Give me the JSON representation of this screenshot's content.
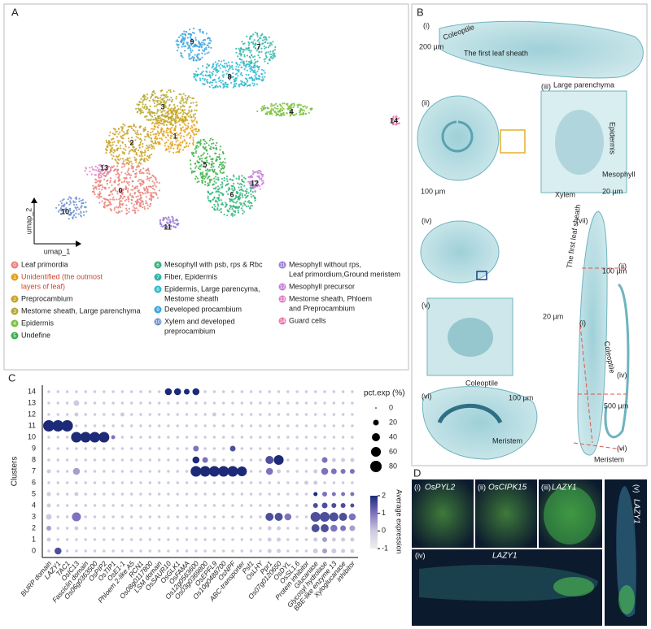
{
  "panel_a": {
    "letter": "A",
    "axis_x": "umap_1",
    "axis_y": "umap_2",
    "cluster_labels": [
      "0",
      "1",
      "2",
      "3",
      "4",
      "5",
      "6",
      "7",
      "8",
      "9",
      "10",
      "11",
      "12",
      "13",
      "14"
    ],
    "legend": [
      {
        "number": "0",
        "color": "#e8837a",
        "label": [
          "Leaf primordia"
        ]
      },
      {
        "number": "1",
        "color": "#e3a21a",
        "label": [
          "Unidentified (the outmost",
          "layers of leaf)"
        ]
      },
      {
        "number": "2",
        "color": "#c9a227",
        "label": [
          "Preprocambium"
        ]
      },
      {
        "number": "3",
        "color": "#b5a82e",
        "label": [
          "Mestome sheath, Large parenchyma"
        ]
      },
      {
        "number": "4",
        "color": "#7cc242",
        "label": [
          "Epidermis"
        ]
      },
      {
        "number": "5",
        "color": "#3db049",
        "label": [
          "Undefine"
        ]
      },
      {
        "number": "6",
        "color": "#2fb57a",
        "label": [
          "Mesophyll with psb, rps & Rbc"
        ]
      },
      {
        "number": "7",
        "color": "#30b6a7",
        "label": [
          "Fiber, Epidermis"
        ]
      },
      {
        "number": "8",
        "color": "#2fb8d1",
        "label": [
          "Epidermis, Large parencyma,",
          "Mestome sheath"
        ]
      },
      {
        "number": "9",
        "color": "#3aa5e0",
        "label": [
          "Developed procambium"
        ]
      },
      {
        "number": "10",
        "color": "#6a8fd0",
        "label": [
          "Xylem and developed",
          "preprocambium"
        ]
      },
      {
        "number": "11",
        "color": "#9b7ed6",
        "label": [
          "Mesophyll without rps,",
          "Leaf primordium,Ground meristem"
        ]
      },
      {
        "number": "12",
        "color": "#c77fd9",
        "label": [
          "Mesophyll precursor"
        ]
      },
      {
        "number": "13",
        "color": "#e27fc8",
        "label": [
          "Mestome sheath, Phloem",
          "and Preprocambium"
        ]
      },
      {
        "number": "14",
        "color": "#ee78b1",
        "label": [
          "Guard cells"
        ]
      }
    ]
  },
  "panel_b": {
    "letter": "B",
    "labels": [
      "(i)",
      "Coleoptile",
      "The first leaf sheath",
      "200 µm",
      "(ii)",
      "(iii)",
      "Large parenchyma",
      "Epidermis",
      "Mesophyll",
      "Xylem",
      "100 µm",
      "20 µm",
      "(iv)",
      "100 µm",
      "(v)",
      "20 µm",
      "(vi)",
      "Coleoptile",
      "100 µm",
      "Meristem",
      "(vii)",
      "The first leaf sheath",
      "(ii)",
      "Coleoptile",
      "(i)",
      "(iv)",
      "500 µm",
      "(vi)",
      "Meristem"
    ]
  },
  "panel_c": {
    "letter": "C",
    "y_label": "Clusters",
    "clusters": [
      "0",
      "1",
      "2",
      "3",
      "4",
      "5",
      "6",
      "7",
      "8",
      "9",
      "10",
      "11",
      "12",
      "13",
      "14"
    ],
    "genes": [
      "BURP domain",
      "LAZY1",
      "TAC1",
      "OsIC13",
      "Fasciclin domain",
      "Os06g0363500",
      "OsPIP2",
      "OsTIP1",
      "OsE1-1",
      "Phloem 2-like A5",
      "RCN1",
      "Os08g0117800",
      "LSM domain",
      "OsSAUR10",
      "OsGLK1",
      "OsFAMA",
      "Os12g0563600",
      "Os03g0369800",
      "OsEPFL9",
      "Os10g0488700",
      "OsNPF",
      "ABC-transporter",
      "Psf1",
      "OsLHY",
      "Ppr1",
      "Os07g0120650",
      "OsDYL",
      "OsSL1.6",
      "Protein inhibitor",
      "Glucanase",
      "Glycosyl hydrolase",
      "BBE-like enzyme 13",
      "Xyloglucanase",
      "inhibitor"
    ],
    "pct": [
      [
        5,
        30,
        5,
        5,
        5,
        5,
        5,
        5,
        5,
        5,
        5,
        5,
        5,
        5,
        5,
        5,
        5,
        5,
        5,
        5,
        5,
        5,
        5,
        5,
        10,
        10,
        5,
        5,
        5,
        15,
        15,
        15,
        10,
        10
      ],
      [
        10,
        5,
        5,
        5,
        5,
        5,
        5,
        5,
        5,
        5,
        5,
        5,
        5,
        5,
        5,
        5,
        5,
        5,
        5,
        5,
        5,
        5,
        5,
        5,
        10,
        10,
        5,
        5,
        5,
        10,
        15,
        10,
        10,
        10
      ],
      [
        15,
        5,
        5,
        10,
        5,
        5,
        5,
        5,
        5,
        5,
        5,
        5,
        5,
        5,
        5,
        5,
        5,
        5,
        5,
        5,
        5,
        5,
        5,
        5,
        10,
        10,
        5,
        5,
        5,
        40,
        40,
        30,
        20,
        20
      ],
      [
        20,
        5,
        5,
        50,
        5,
        5,
        5,
        5,
        5,
        5,
        5,
        5,
        5,
        5,
        5,
        5,
        5,
        5,
        5,
        5,
        5,
        5,
        5,
        5,
        40,
        40,
        30,
        5,
        5,
        60,
        60,
        50,
        40,
        30
      ],
      [
        10,
        5,
        5,
        5,
        5,
        5,
        5,
        5,
        5,
        5,
        5,
        5,
        5,
        5,
        5,
        5,
        5,
        5,
        5,
        5,
        5,
        5,
        5,
        5,
        5,
        5,
        5,
        5,
        5,
        15,
        20,
        15,
        15,
        10
      ],
      [
        10,
        5,
        5,
        10,
        5,
        5,
        5,
        5,
        5,
        5,
        5,
        5,
        5,
        5,
        5,
        5,
        5,
        5,
        5,
        5,
        5,
        5,
        5,
        5,
        5,
        5,
        5,
        5,
        5,
        10,
        15,
        10,
        10,
        10
      ],
      [
        5,
        5,
        5,
        5,
        5,
        5,
        5,
        5,
        5,
        5,
        5,
        5,
        5,
        5,
        5,
        5,
        5,
        5,
        5,
        5,
        5,
        5,
        5,
        5,
        5,
        5,
        5,
        5,
        10,
        10,
        5,
        5,
        5,
        5
      ],
      [
        10,
        5,
        5,
        30,
        5,
        5,
        5,
        5,
        5,
        5,
        5,
        5,
        5,
        5,
        5,
        5,
        70,
        70,
        70,
        70,
        70,
        60,
        5,
        5,
        30,
        10,
        5,
        5,
        5,
        10,
        30,
        20,
        15,
        15
      ],
      [
        5,
        5,
        5,
        5,
        5,
        5,
        5,
        5,
        5,
        5,
        5,
        5,
        5,
        5,
        5,
        5,
        30,
        20,
        10,
        5,
        5,
        5,
        5,
        5,
        40,
        60,
        5,
        5,
        5,
        5,
        20,
        10,
        10,
        10
      ],
      [
        5,
        5,
        5,
        5,
        5,
        5,
        5,
        5,
        5,
        5,
        5,
        5,
        5,
        5,
        5,
        5,
        20,
        5,
        5,
        5,
        20,
        5,
        5,
        5,
        5,
        5,
        5,
        5,
        5,
        5,
        5,
        5,
        5,
        5
      ],
      [
        5,
        5,
        5,
        70,
        70,
        70,
        70,
        10,
        5,
        5,
        5,
        5,
        5,
        5,
        5,
        5,
        5,
        5,
        5,
        5,
        5,
        5,
        5,
        5,
        5,
        5,
        5,
        5,
        5,
        5,
        5,
        5,
        5,
        5
      ],
      [
        80,
        80,
        80,
        5,
        5,
        5,
        5,
        5,
        5,
        5,
        5,
        5,
        5,
        5,
        5,
        5,
        5,
        5,
        5,
        5,
        5,
        5,
        5,
        5,
        5,
        5,
        5,
        5,
        5,
        5,
        5,
        5,
        5,
        5
      ],
      [
        5,
        5,
        5,
        10,
        5,
        5,
        5,
        5,
        10,
        5,
        5,
        5,
        5,
        5,
        5,
        5,
        5,
        5,
        10,
        5,
        5,
        5,
        5,
        5,
        5,
        5,
        5,
        5,
        5,
        5,
        5,
        5,
        5,
        5
      ],
      [
        5,
        5,
        5,
        20,
        5,
        5,
        5,
        5,
        5,
        5,
        5,
        5,
        5,
        5,
        5,
        5,
        5,
        5,
        5,
        5,
        5,
        5,
        5,
        5,
        5,
        5,
        5,
        5,
        5,
        5,
        5,
        5,
        5,
        5
      ],
      [
        5,
        5,
        5,
        5,
        5,
        5,
        5,
        5,
        5,
        5,
        5,
        5,
        5,
        30,
        30,
        20,
        30,
        5,
        5,
        5,
        5,
        5,
        5,
        5,
        5,
        5,
        5,
        5,
        5,
        5,
        5,
        5,
        5,
        5
      ]
    ],
    "expr": [
      [
        0,
        1.5,
        0,
        0,
        0,
        0,
        0,
        0,
        0,
        0,
        0,
        0,
        0,
        0,
        0,
        0,
        0,
        0,
        0,
        0,
        0,
        0,
        0,
        0,
        0,
        0,
        0,
        0,
        0,
        0,
        0.5,
        0,
        0,
        0
      ],
      [
        0,
        0,
        0,
        0,
        0,
        0,
        0,
        0,
        0,
        0,
        0,
        0,
        0,
        0,
        0,
        0,
        0,
        0,
        0,
        0,
        0,
        0,
        0,
        0,
        0,
        0,
        0,
        0,
        0,
        0,
        0.5,
        0,
        0,
        0
      ],
      [
        0.5,
        0,
        0,
        0,
        0,
        0,
        0,
        0,
        0,
        0,
        0,
        0,
        0,
        0,
        0,
        0,
        0,
        0,
        0,
        0,
        0,
        0,
        0,
        0,
        0,
        0,
        0,
        0,
        0,
        1.5,
        1.5,
        1,
        1,
        0.5
      ],
      [
        0,
        0,
        0,
        1,
        0,
        0,
        0,
        0,
        0,
        0,
        0,
        0,
        0,
        0,
        0,
        0,
        0,
        0,
        0,
        0,
        0,
        0,
        0,
        0,
        1.5,
        1.5,
        1,
        0,
        0,
        1.5,
        1.5,
        1.5,
        1.5,
        1
      ],
      [
        0,
        0,
        0,
        0,
        0,
        0,
        0,
        0,
        0,
        0,
        0,
        0,
        0,
        0,
        0,
        0,
        0,
        0,
        0,
        0,
        0,
        0,
        0,
        0,
        0,
        0,
        0,
        0,
        0,
        1.5,
        1.5,
        1.5,
        1.5,
        1.5
      ],
      [
        0,
        0,
        0,
        0,
        0,
        0,
        0,
        0,
        0,
        0,
        0,
        0,
        0,
        0,
        0,
        0,
        0,
        0,
        0,
        0,
        0,
        0,
        0,
        0,
        0,
        0,
        0,
        0,
        0,
        2,
        1,
        1,
        1,
        1
      ],
      [
        0,
        0,
        0,
        0,
        0,
        0,
        0,
        0,
        0,
        0,
        0,
        0,
        0,
        0,
        0,
        0,
        0,
        0,
        0,
        0,
        0,
        0,
        0,
        0,
        0,
        0,
        0,
        0,
        0,
        0,
        0,
        0,
        0,
        0
      ],
      [
        0,
        0,
        0,
        0.5,
        0,
        0,
        0,
        0,
        0,
        0,
        0,
        0,
        0,
        0,
        0,
        0,
        2,
        2,
        2,
        2,
        2,
        2,
        0,
        0,
        1,
        0,
        0,
        0,
        0,
        0,
        1,
        1,
        1,
        1
      ],
      [
        0,
        0,
        0,
        0,
        0,
        0,
        0,
        0,
        0,
        0,
        0,
        0,
        0,
        0,
        0,
        0,
        2,
        1,
        0,
        0,
        0,
        0,
        0,
        0,
        1.5,
        2,
        0,
        0,
        0,
        0,
        1,
        0,
        0,
        0
      ],
      [
        0,
        0,
        0,
        0,
        0,
        0,
        0,
        0,
        0,
        0,
        0,
        0,
        0,
        0,
        0,
        0,
        1,
        0,
        0,
        0,
        1.5,
        0,
        0,
        0,
        0,
        0,
        0,
        0,
        0,
        0,
        0,
        0,
        0,
        0
      ],
      [
        0,
        0,
        0,
        2,
        2,
        2,
        2,
        1,
        0,
        0,
        0,
        0,
        0,
        0,
        0,
        0,
        0,
        0,
        0,
        0,
        0,
        0,
        0,
        0,
        0,
        0,
        0,
        0,
        0,
        0,
        0,
        0,
        0,
        0
      ],
      [
        2,
        2,
        2,
        0,
        0,
        0,
        0,
        0,
        0,
        0,
        0,
        0,
        0,
        0,
        0,
        0,
        0,
        0,
        0,
        0,
        0,
        0,
        0,
        0,
        0,
        0,
        0,
        0,
        0,
        0,
        0,
        0,
        0,
        0
      ],
      [
        0,
        0,
        0,
        0,
        0,
        0,
        0,
        0,
        0,
        0,
        0,
        0,
        0,
        0,
        0,
        0,
        0,
        0,
        0,
        0,
        0,
        0,
        0,
        0,
        0,
        0,
        0,
        0,
        0,
        0,
        0,
        0,
        0,
        0
      ],
      [
        0,
        0,
        0,
        0,
        0,
        0,
        0,
        0,
        0,
        0,
        0,
        0,
        0,
        0,
        0,
        0,
        0,
        0,
        0,
        0,
        0,
        0,
        0,
        0,
        0,
        0,
        0,
        0,
        0,
        0,
        0,
        0,
        0,
        0
      ],
      [
        0,
        0,
        0,
        0,
        0,
        0,
        0,
        0,
        0,
        0,
        0,
        0,
        0,
        2,
        2,
        2,
        2,
        0,
        0,
        0,
        0,
        0,
        0,
        0,
        0,
        0,
        0,
        0,
        0,
        0,
        0,
        0,
        0,
        0
      ]
    ],
    "size_title": "pct.exp (%)",
    "size_ticks": [
      0,
      20,
      40,
      60,
      80
    ],
    "color_title": "Average expression",
    "clim": [
      -1,
      2
    ],
    "color_ticks": [
      -1,
      0,
      1,
      2
    ]
  },
  "panel_d": {
    "letter": "D",
    "labels": [
      [
        "(i)",
        "OsPYL2"
      ],
      [
        "(ii)",
        "OsCIPK15"
      ],
      [
        "(iii)",
        "LAZY1"
      ],
      [
        "(iv)",
        "LAZY1"
      ],
      [
        "(v)",
        "LAZY1"
      ]
    ]
  }
}
